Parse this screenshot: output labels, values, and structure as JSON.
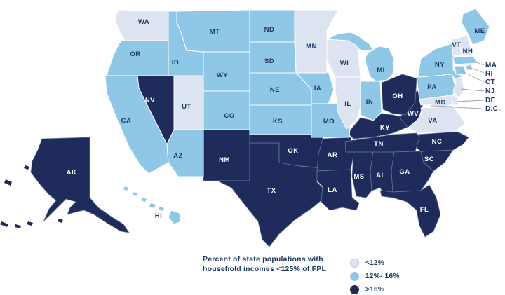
{
  "legend": {
    "title_line1": "Percent of state populations with",
    "title_line2": "household incomes <125% of FPL",
    "items": [
      {
        "label": "<12%",
        "category": "lt12"
      },
      {
        "label": "12%- 16%",
        "category": "mid"
      },
      {
        "label": ">16%",
        "category": "gt16"
      }
    ]
  },
  "colors": {
    "lt12": "#dce4f1",
    "mid": "#8fc7e7",
    "gt16": "#1f2c5b",
    "label_navy": "#1e3a63",
    "label_on_dark": "#ffffff",
    "leader_line": "#9aa2ad",
    "border_light": "#ffffff",
    "border_dark": "#6b7ba1"
  },
  "states": [
    {
      "code": "NV",
      "label": "NV",
      "category": "gt16"
    },
    {
      "code": "NM",
      "label": "NM",
      "category": "gt16"
    },
    {
      "code": "TX",
      "label": "TX",
      "category": "gt16"
    },
    {
      "code": "OK",
      "label": "OK",
      "category": "gt16"
    },
    {
      "code": "AR",
      "label": "AR",
      "category": "gt16"
    },
    {
      "code": "LA",
      "label": "LA",
      "category": "gt16"
    },
    {
      "code": "MS",
      "label": "MS",
      "category": "gt16"
    },
    {
      "code": "AL",
      "label": "AL",
      "category": "gt16"
    },
    {
      "code": "GA",
      "label": "GA",
      "category": "gt16"
    },
    {
      "code": "FL",
      "label": "FL",
      "category": "gt16"
    },
    {
      "code": "SC",
      "label": "SC",
      "category": "gt16"
    },
    {
      "code": "NC",
      "label": "NC",
      "category": "gt16"
    },
    {
      "code": "TN",
      "label": "TN",
      "category": "gt16"
    },
    {
      "code": "KY",
      "label": "KY",
      "category": "gt16"
    },
    {
      "code": "WV",
      "label": "WV",
      "category": "gt16"
    },
    {
      "code": "OH",
      "label": "OH",
      "category": "gt16"
    },
    {
      "code": "AK",
      "label": "AK",
      "category": "gt16"
    },
    {
      "code": "DC",
      "label": "D.C.",
      "category": "gt16"
    },
    {
      "code": "OR",
      "label": "OR",
      "category": "mid"
    },
    {
      "code": "CA",
      "label": "CA",
      "category": "mid"
    },
    {
      "code": "ID",
      "label": "ID",
      "category": "mid"
    },
    {
      "code": "MT",
      "label": "MT",
      "category": "mid"
    },
    {
      "code": "WY",
      "label": "WY",
      "category": "mid"
    },
    {
      "code": "CO",
      "label": "CO",
      "category": "mid"
    },
    {
      "code": "AZ",
      "label": "AZ",
      "category": "mid"
    },
    {
      "code": "ND",
      "label": "ND",
      "category": "mid"
    },
    {
      "code": "SD",
      "label": "SD",
      "category": "mid"
    },
    {
      "code": "NE",
      "label": "NE",
      "category": "mid"
    },
    {
      "code": "KS",
      "label": "KS",
      "category": "mid"
    },
    {
      "code": "MO",
      "label": "MO",
      "category": "mid"
    },
    {
      "code": "IA",
      "label": "IA",
      "category": "mid"
    },
    {
      "code": "MI",
      "label": "MI",
      "category": "mid"
    },
    {
      "code": "IN",
      "label": "IN",
      "category": "mid"
    },
    {
      "code": "PA",
      "label": "PA",
      "category": "mid"
    },
    {
      "code": "NY",
      "label": "NY",
      "category": "mid"
    },
    {
      "code": "ME",
      "label": "ME",
      "category": "mid"
    },
    {
      "code": "MA",
      "label": "MA",
      "category": "mid"
    },
    {
      "code": "RI",
      "label": "RI",
      "category": "mid"
    },
    {
      "code": "CT",
      "label": "CT",
      "category": "mid"
    },
    {
      "code": "HI",
      "label": "HI",
      "category": "mid"
    },
    {
      "code": "WA",
      "label": "WA",
      "category": "lt12"
    },
    {
      "code": "UT",
      "label": "UT",
      "category": "lt12"
    },
    {
      "code": "MN",
      "label": "MN",
      "category": "lt12"
    },
    {
      "code": "WI",
      "label": "WI",
      "category": "lt12"
    },
    {
      "code": "IL",
      "label": "IL",
      "category": "lt12"
    },
    {
      "code": "VA",
      "label": "VA",
      "category": "lt12"
    },
    {
      "code": "VT",
      "label": "VT",
      "category": "lt12"
    },
    {
      "code": "NH",
      "label": "NH",
      "category": "lt12"
    },
    {
      "code": "NJ",
      "label": "NJ",
      "category": "lt12"
    },
    {
      "code": "MD",
      "label": "MD",
      "category": "lt12"
    },
    {
      "code": "DE",
      "label": "DE",
      "category": "lt12"
    }
  ],
  "callouts": [
    {
      "label": "MA"
    },
    {
      "label": "RI"
    },
    {
      "label": "CT"
    },
    {
      "label": "NJ"
    },
    {
      "label": "DE"
    },
    {
      "label": "D.C."
    }
  ]
}
